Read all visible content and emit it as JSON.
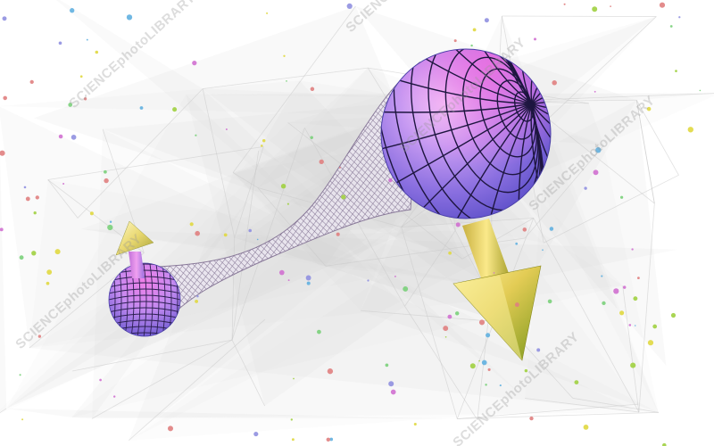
{
  "image": {
    "subject": "einstein-rosen-bridge-wormhole",
    "background_color": "#ffffff",
    "colors": {
      "sphere_light": "#f2c8ff",
      "sphere_mid": "#b88cf0",
      "sphere_dark": "#6f5fd6",
      "sphere_pink": "#e06ad8",
      "tube_mesh": "#7a6a8a",
      "tube_fill": "#e9e3f1",
      "arrow_yellow": "#f2e27a",
      "arrow_green": "#9fb42a",
      "arrow_pink": "#e08ad8",
      "network_lines": "#d9d9d9"
    }
  },
  "watermarks": [
    {
      "text": "SCIENCEphotoLIBRARY"
    },
    {
      "text": "SCIENCEphotoLIBRARY"
    },
    {
      "text": "SCIENCEphotoLIBRARY"
    },
    {
      "text": "SCIENCEphotoLIBRARY"
    },
    {
      "text": "SCIENCEphotoLIBRARY"
    },
    {
      "text": "SCIENCEphotoLIBRARY"
    }
  ]
}
